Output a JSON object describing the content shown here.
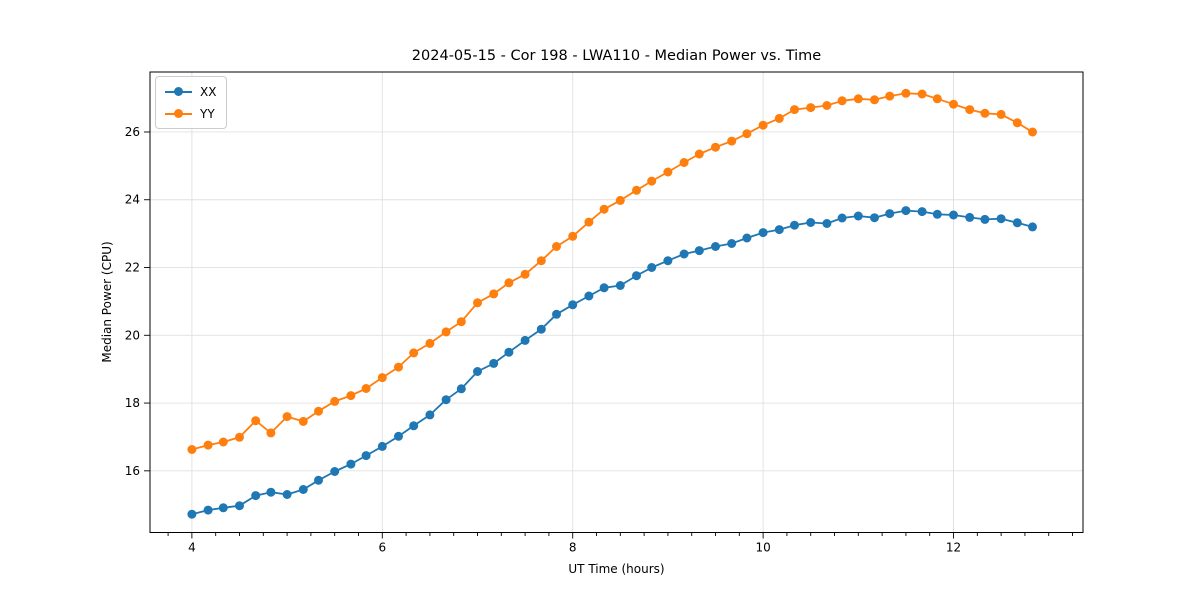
{
  "figure": {
    "title": "2024-05-15 - Cor 198 - LWA110 - Median Power vs. Time"
  },
  "chart_data": {
    "type": "line",
    "title": "2024-05-15 - Cor 198 - LWA110 - Median Power vs. Time",
    "xlabel": "UT Time (hours)",
    "ylabel": "Median Power (CPU)",
    "xlim": [
      3.56,
      13.36
    ],
    "ylim": [
      14.18,
      27.77
    ],
    "x_major_ticks": [
      4,
      6,
      8,
      10,
      12
    ],
    "x_minor_tick_step": 0.25,
    "y_major_ticks": [
      16,
      18,
      20,
      22,
      24,
      26
    ],
    "grid": true,
    "grid_color": "#e0e0e0",
    "legend_position": "upper-left",
    "marker": "circle",
    "x": [
      4,
      4.17,
      4.33,
      4.5,
      4.67,
      4.83,
      5,
      5.17,
      5.33,
      5.5,
      5.67,
      5.83,
      6,
      6.17,
      6.33,
      6.5,
      6.67,
      6.83,
      7,
      7.17,
      7.33,
      7.5,
      7.67,
      7.83,
      8,
      8.17,
      8.33,
      8.5,
      8.67,
      8.83,
      9,
      9.17,
      9.33,
      9.5,
      9.67,
      9.83,
      10,
      10.17,
      10.33,
      10.5,
      10.67,
      10.83,
      11,
      11.17,
      11.33,
      11.5,
      11.67,
      11.83,
      12,
      12.17,
      12.33,
      12.5,
      12.67,
      12.83
    ],
    "series": [
      {
        "name": "XX",
        "color": "#1f77b4",
        "values": [
          14.72,
          14.84,
          14.91,
          14.97,
          15.27,
          15.37,
          15.3,
          15.45,
          15.72,
          15.98,
          16.2,
          16.45,
          16.72,
          17.02,
          17.33,
          17.65,
          18.1,
          18.42,
          18.93,
          19.17,
          19.5,
          19.85,
          20.18,
          20.62,
          20.9,
          21.16,
          21.4,
          21.47,
          21.76,
          22.0,
          22.2,
          22.4,
          22.5,
          22.62,
          22.71,
          22.87,
          23.03,
          23.12,
          23.25,
          23.33,
          23.3,
          23.46,
          23.52,
          23.47,
          23.59,
          23.68,
          23.65,
          23.57,
          23.55,
          23.48,
          23.42,
          23.44,
          23.32,
          23.2
        ]
      },
      {
        "name": "YY",
        "color": "#ff7f0e",
        "values": [
          16.63,
          16.76,
          16.85,
          16.99,
          17.48,
          17.12,
          17.6,
          17.46,
          17.76,
          18.05,
          18.22,
          18.43,
          18.75,
          19.06,
          19.48,
          19.76,
          20.1,
          20.4,
          20.96,
          21.22,
          21.55,
          21.8,
          22.2,
          22.62,
          22.92,
          23.34,
          23.72,
          23.98,
          24.28,
          24.55,
          24.82,
          25.1,
          25.35,
          25.55,
          25.73,
          25.95,
          26.2,
          26.4,
          26.66,
          26.72,
          26.78,
          26.92,
          26.98,
          26.95,
          27.06,
          27.14,
          27.12,
          26.98,
          26.82,
          26.66,
          26.55,
          26.52,
          26.27,
          26.0
        ]
      }
    ]
  }
}
